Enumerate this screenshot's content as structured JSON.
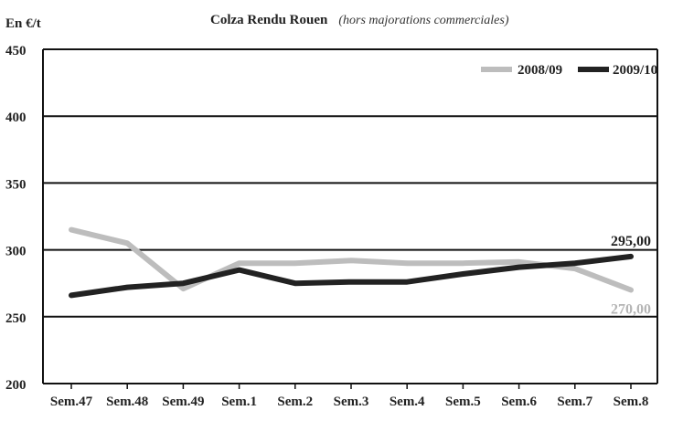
{
  "chart_data": {
    "type": "line",
    "title": "Colza Rendu Rouen",
    "subtitle": "(hors majorations commerciales)",
    "unit_label": "En €/t",
    "ylim": [
      200,
      450
    ],
    "yticks": [
      "200",
      "250",
      "300",
      "350",
      "400",
      "450"
    ],
    "categories": [
      "Sem.47",
      "Sem.48",
      "Sem.49",
      "Sem.1",
      "Sem.2",
      "Sem.3",
      "Sem.4",
      "Sem.5",
      "Sem.6",
      "Sem.7",
      "Sem.8"
    ],
    "grid": true,
    "legend_position": "top-right",
    "series": [
      {
        "name": "2008/09",
        "color": "#bdbdbd",
        "values": [
          315,
          305,
          271,
          290,
          290,
          292,
          290,
          290,
          291,
          286,
          270
        ],
        "end_label": "270,00"
      },
      {
        "name": "2009/10",
        "color": "#222222",
        "values": [
          266,
          272,
          275,
          285,
          275,
          276,
          276,
          282,
          287,
          290,
          295
        ],
        "end_label": "295,00"
      }
    ]
  }
}
